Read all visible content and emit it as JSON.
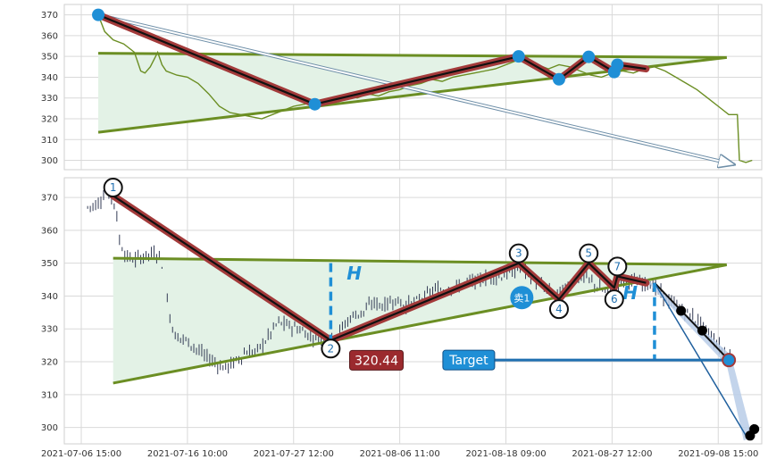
{
  "chart_data": {
    "type": "line",
    "colors": {
      "price_line": "#6b8e23",
      "trend_line": "#6b8e23",
      "triangle_fill": "#e3f2e6",
      "zigzag_outer": "#a33a3a",
      "zigzag_inner": "#111111",
      "marker": "#1f8fd6",
      "candle": "#333b55",
      "label_red": "#9b2a2e",
      "label_blue": "#1f8fd6",
      "forecast_fill": "#b8cde8"
    },
    "x_ticks": [
      {
        "t": 0,
        "label": "2021-07-06 15:00"
      },
      {
        "t": 10,
        "label": "2021-07-16 10:00"
      },
      {
        "t": 20,
        "label": "2021-07-27 12:00"
      },
      {
        "t": 30,
        "label": "2021-08-06 11:00"
      },
      {
        "t": 40,
        "label": "2021-08-18 09:00"
      },
      {
        "t": 50,
        "label": "2021-08-27 12:00"
      },
      {
        "t": 60,
        "label": "2021-09-08 15:00"
      }
    ],
    "x_range": [
      -1.6,
      64.1
    ],
    "top_panel": {
      "ylim": [
        295.5,
        375
      ],
      "yticks": [
        300,
        310,
        320,
        330,
        340,
        350,
        360,
        370
      ],
      "price_series": [
        [
          1.6,
          370
        ],
        [
          2.2,
          362
        ],
        [
          3,
          358
        ],
        [
          4,
          356
        ],
        [
          5,
          352
        ],
        [
          5.6,
          343
        ],
        [
          6,
          342
        ],
        [
          6.5,
          345
        ],
        [
          7.2,
          352
        ],
        [
          7.6,
          346
        ],
        [
          8,
          343
        ],
        [
          9,
          341
        ],
        [
          10,
          340
        ],
        [
          11,
          337
        ],
        [
          12,
          332
        ],
        [
          13,
          326
        ],
        [
          14,
          323
        ],
        [
          15,
          322
        ],
        [
          16,
          321
        ],
        [
          17,
          320
        ],
        [
          18,
          322
        ],
        [
          19,
          324
        ],
        [
          20,
          326
        ],
        [
          21,
          327
        ],
        [
          22,
          328
        ],
        [
          23,
          329
        ],
        [
          24,
          330
        ],
        [
          25,
          331
        ],
        [
          26,
          330
        ],
        [
          27,
          332
        ],
        [
          28,
          331
        ],
        [
          29,
          333
        ],
        [
          30,
          334
        ],
        [
          31,
          336
        ],
        [
          32,
          337
        ],
        [
          33,
          339
        ],
        [
          34,
          338
        ],
        [
          35,
          340
        ],
        [
          36,
          341
        ],
        [
          37,
          342
        ],
        [
          38,
          343
        ],
        [
          39,
          344
        ],
        [
          40,
          346
        ],
        [
          41,
          348
        ],
        [
          42,
          349
        ],
        [
          43,
          346
        ],
        [
          44,
          344
        ],
        [
          45,
          346
        ],
        [
          46,
          345
        ],
        [
          47,
          343
        ],
        [
          48,
          341
        ],
        [
          49,
          340
        ],
        [
          50,
          342
        ],
        [
          51,
          343
        ],
        [
          52,
          342
        ],
        [
          53,
          344
        ],
        [
          54,
          345
        ],
        [
          55,
          343
        ],
        [
          56,
          340
        ],
        [
          57,
          337
        ],
        [
          58,
          334
        ],
        [
          59,
          330
        ],
        [
          60,
          326
        ],
        [
          61,
          322
        ],
        [
          61.8,
          322
        ],
        [
          62,
          300
        ],
        [
          62.6,
          299
        ],
        [
          63.2,
          300
        ]
      ],
      "triangle": {
        "upper": [
          [
            1.6,
            351.5
          ],
          [
            60.8,
            349.5
          ]
        ],
        "lower": [
          [
            1.6,
            313.5
          ],
          [
            60.8,
            349.5
          ]
        ]
      },
      "trend_upper": [
        [
          1.6,
          351.5
        ],
        [
          60.8,
          349.5
        ]
      ],
      "trend_lower": [
        [
          1.6,
          313.5
        ],
        [
          60.8,
          349.5
        ]
      ],
      "zigzag": [
        [
          1.6,
          370
        ],
        [
          22,
          327
        ],
        [
          41.2,
          350
        ],
        [
          45,
          339
        ],
        [
          47.8,
          349.8
        ],
        [
          50.2,
          342.5
        ],
        [
          50.5,
          346
        ],
        [
          53.2,
          344
        ]
      ],
      "markers": [
        [
          1.6,
          370
        ],
        [
          22,
          327
        ],
        [
          41.2,
          350
        ],
        [
          45,
          339
        ],
        [
          47.8,
          349.8
        ],
        [
          50.2,
          342.5
        ],
        [
          50.5,
          346
        ]
      ],
      "diagonal": [
        [
          1.6,
          370
        ],
        [
          61.5,
          298
        ]
      ]
    },
    "bottom_panel": {
      "ylim": [
        295,
        376
      ],
      "yticks": [
        300,
        310,
        320,
        330,
        340,
        350,
        360,
        370
      ],
      "triangle": {
        "upper": [
          [
            3,
            351.5
          ],
          [
            60.8,
            349.5
          ]
        ],
        "lower": [
          [
            3,
            313.5
          ],
          [
            60.8,
            349.5
          ]
        ]
      },
      "trend_upper": [
        [
          3,
          351.5
        ],
        [
          60.8,
          349.5
        ]
      ],
      "trend_lower": [
        [
          3,
          313.5
        ],
        [
          60.8,
          349.5
        ]
      ],
      "zigzag": [
        [
          3,
          370.5
        ],
        [
          23.5,
          326.5
        ],
        [
          41.2,
          350
        ],
        [
          45,
          339
        ],
        [
          47.8,
          350
        ],
        [
          50.2,
          342.5
        ],
        [
          50.5,
          346
        ],
        [
          53.2,
          344
        ]
      ],
      "points": [
        {
          "label": "1",
          "t": 3,
          "y": 373
        },
        {
          "label": "2",
          "t": 23.5,
          "y": 324
        },
        {
          "label": "3",
          "t": 41.2,
          "y": 353
        },
        {
          "label": "4",
          "t": 45,
          "y": 336
        },
        {
          "label": "5",
          "t": 47.8,
          "y": 353
        },
        {
          "label": "6",
          "t": 50.2,
          "y": 339
        },
        {
          "label": "7",
          "t": 50.5,
          "y": 349
        }
      ],
      "candle_anchors": [
        [
          0.6,
          367
        ],
        [
          1.5,
          368
        ],
        [
          2.4,
          372
        ],
        [
          3.2,
          368
        ],
        [
          3.6,
          357
        ],
        [
          4.2,
          352
        ],
        [
          5,
          351
        ],
        [
          5.8,
          352
        ],
        [
          6.8,
          353
        ],
        [
          7.5,
          352
        ],
        [
          8.2,
          336
        ],
        [
          8.8,
          328
        ],
        [
          9.6,
          327
        ],
        [
          10.5,
          325
        ],
        [
          11.5,
          322
        ],
        [
          12.5,
          320
        ],
        [
          13.5,
          318
        ],
        [
          14.5,
          320
        ],
        [
          15.5,
          323
        ],
        [
          16.5,
          323
        ],
        [
          17.5,
          327
        ],
        [
          18.5,
          332
        ],
        [
          19.5,
          331
        ],
        [
          20.5,
          330
        ],
        [
          21.5,
          328
        ],
        [
          22.5,
          327
        ],
        [
          23.5,
          327
        ],
        [
          24.5,
          330
        ],
        [
          25.5,
          334
        ],
        [
          26.5,
          335
        ],
        [
          27.5,
          338
        ],
        [
          28.5,
          337
        ],
        [
          29.5,
          339
        ],
        [
          30.5,
          337
        ],
        [
          31.5,
          338
        ],
        [
          32.5,
          340
        ],
        [
          33.5,
          342
        ],
        [
          34.5,
          342
        ],
        [
          35.5,
          343
        ],
        [
          36.5,
          344
        ],
        [
          37.5,
          345
        ],
        [
          38.5,
          346
        ],
        [
          39.5,
          346
        ],
        [
          40.5,
          347
        ],
        [
          41.5,
          349
        ],
        [
          42.5,
          345
        ],
        [
          43.5,
          343
        ],
        [
          44.5,
          340
        ],
        [
          45.5,
          342
        ],
        [
          46.5,
          345
        ],
        [
          47.5,
          346
        ],
        [
          48.5,
          343
        ],
        [
          49.5,
          341
        ],
        [
          50.5,
          343
        ],
        [
          51.5,
          345
        ],
        [
          52.5,
          344
        ],
        [
          53.5,
          344
        ],
        [
          54.5,
          341
        ],
        [
          55.5,
          338
        ],
        [
          56.5,
          336
        ],
        [
          57.5,
          334
        ],
        [
          58.5,
          331
        ],
        [
          59.5,
          327
        ],
        [
          60.5,
          323
        ],
        [
          61.2,
          322
        ]
      ],
      "candle_gaps": [
        [
          7.6,
          8.1
        ],
        [
          62,
          62.7
        ]
      ],
      "candles_tail": [
        [
          62.9,
          297,
          300
        ],
        [
          63.3,
          299,
          301
        ]
      ],
      "h_up": {
        "t": 23.5,
        "y1": 350,
        "y2": 327,
        "label": "H",
        "label_t": 25,
        "label_y": 345
      },
      "h_down": {
        "t": 54,
        "y1": 344,
        "y2": 320.5,
        "label": "H",
        "label_t": 51,
        "label_y": 339
      },
      "target_price": {
        "text": "320.44",
        "t": 27.8,
        "y": 320.44
      },
      "target": {
        "text": "Target",
        "t": 36.5,
        "y": 320.5,
        "line_from": 38.8,
        "line_to": 60.5
      },
      "sell_marker": {
        "text": "卖1",
        "t": 41.5,
        "y": 339.5
      },
      "forecast_band": [
        [
          53.2,
          344
        ],
        [
          61.5,
          320.5
        ],
        [
          62.8,
          297
        ]
      ],
      "forecast_line": [
        [
          54,
          344
        ],
        [
          61,
          320.5
        ]
      ],
      "forecast_line2": [
        [
          54,
          344
        ],
        [
          62.8,
          296.5
        ]
      ],
      "target_dot": {
        "t": 61,
        "y": 320.5
      },
      "black_dots": [
        [
          56.5,
          335.5
        ],
        [
          58.5,
          329.5
        ],
        [
          63,
          297.5
        ],
        [
          63.4,
          299.5
        ]
      ]
    }
  }
}
